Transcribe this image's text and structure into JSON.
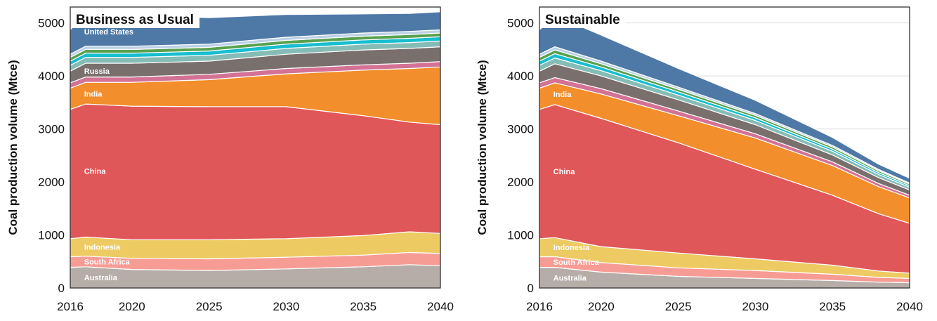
{
  "chart_data": [
    {
      "type": "area",
      "stacked": true,
      "title": "Business as Usual",
      "xlabel": "",
      "ylabel": "Coal production volume (Mtce)",
      "xlim": [
        2016,
        2040
      ],
      "ylim": [
        0,
        5300
      ],
      "x_ticks": [
        2016,
        2020,
        2025,
        2030,
        2035,
        2040
      ],
      "y_ticks": [
        0,
        1000,
        2000,
        3000,
        4000,
        5000
      ],
      "grid": true,
      "x": [
        2016,
        2017,
        2020,
        2025,
        2030,
        2035,
        2038,
        2040
      ],
      "series": [
        {
          "name": "Australia",
          "color": "#b6ada8",
          "values": [
            390,
            400,
            350,
            330,
            360,
            400,
            440,
            420
          ]
        },
        {
          "name": "South Africa",
          "color": "#f79c95",
          "values": [
            200,
            200,
            210,
            220,
            220,
            220,
            230,
            230
          ]
        },
        {
          "name": "Indonesia",
          "color": "#edcb62",
          "values": [
            340,
            360,
            350,
            360,
            350,
            370,
            390,
            380
          ]
        },
        {
          "name": "China",
          "color": "#e05759",
          "values": [
            2440,
            2510,
            2520,
            2510,
            2490,
            2260,
            2070,
            2050
          ]
        },
        {
          "name": "India",
          "color": "#f28e2b",
          "values": [
            400,
            410,
            450,
            510,
            620,
            860,
            1010,
            1090
          ]
        },
        {
          "name": "",
          "color": "#d37295",
          "values": [
            100,
            100,
            100,
            100,
            100,
            100,
            100,
            100
          ]
        },
        {
          "name": "Russia",
          "color": "#79706e",
          "values": [
            220,
            260,
            260,
            250,
            270,
            280,
            280,
            280
          ]
        },
        {
          "name": "",
          "color": "#86bcb6",
          "values": [
            110,
            110,
            110,
            110,
            110,
            110,
            110,
            110
          ]
        },
        {
          "name": "",
          "color": "#17becf",
          "values": [
            80,
            80,
            80,
            80,
            80,
            80,
            80,
            80
          ]
        },
        {
          "name": "",
          "color": "#59a14f",
          "values": [
            70,
            70,
            70,
            70,
            70,
            70,
            70,
            70
          ]
        },
        {
          "name": "",
          "color": "#bcd1e6",
          "values": [
            60,
            60,
            60,
            60,
            60,
            60,
            60,
            60
          ]
        },
        {
          "name": "United States",
          "color": "#4e79a7",
          "values": [
            460,
            590,
            580,
            500,
            430,
            360,
            340,
            340
          ]
        }
      ]
    },
    {
      "type": "area",
      "stacked": true,
      "title": "Sustainable",
      "xlabel": "",
      "ylabel": "Coal production volume (Mtce)",
      "xlim": [
        2016,
        2040
      ],
      "ylim": [
        0,
        5300
      ],
      "x_ticks": [
        2016,
        2020,
        2025,
        2030,
        2035,
        2040
      ],
      "y_ticks": [
        0,
        1000,
        2000,
        3000,
        4000,
        5000
      ],
      "grid": true,
      "x": [
        2016,
        2017,
        2020,
        2025,
        2030,
        2035,
        2038,
        2040
      ],
      "series": [
        {
          "name": "Australia",
          "color": "#b6ada8",
          "values": [
            390,
            390,
            300,
            220,
            180,
            140,
            110,
            100
          ]
        },
        {
          "name": "South Africa",
          "color": "#f79c95",
          "values": [
            200,
            200,
            180,
            160,
            150,
            120,
            90,
            80
          ]
        },
        {
          "name": "Indonesia",
          "color": "#edcb62",
          "values": [
            340,
            360,
            300,
            280,
            220,
            170,
            120,
            100
          ]
        },
        {
          "name": "China",
          "color": "#e05759",
          "values": [
            2440,
            2510,
            2420,
            2080,
            1690,
            1320,
            1080,
            940
          ]
        },
        {
          "name": "India",
          "color": "#f28e2b",
          "values": [
            400,
            410,
            460,
            510,
            590,
            560,
            510,
            480
          ]
        },
        {
          "name": "",
          "color": "#d37295",
          "values": [
            100,
            100,
            100,
            90,
            80,
            70,
            60,
            50
          ]
        },
        {
          "name": "",
          "color": "#79706e",
          "values": [
            220,
            260,
            240,
            210,
            170,
            130,
            110,
            100
          ]
        },
        {
          "name": "",
          "color": "#86bcb6",
          "values": [
            110,
            110,
            100,
            90,
            80,
            70,
            60,
            50
          ]
        },
        {
          "name": "",
          "color": "#17becf",
          "values": [
            80,
            80,
            70,
            60,
            50,
            40,
            35,
            30
          ]
        },
        {
          "name": "",
          "color": "#59a14f",
          "values": [
            70,
            70,
            60,
            50,
            45,
            40,
            35,
            30
          ]
        },
        {
          "name": "",
          "color": "#bcd1e6",
          "values": [
            60,
            60,
            50,
            40,
            35,
            30,
            25,
            20
          ]
        },
        {
          "name": "",
          "color": "#4e79a7",
          "values": [
            460,
            590,
            490,
            350,
            250,
            150,
            100,
            90
          ]
        }
      ]
    }
  ]
}
